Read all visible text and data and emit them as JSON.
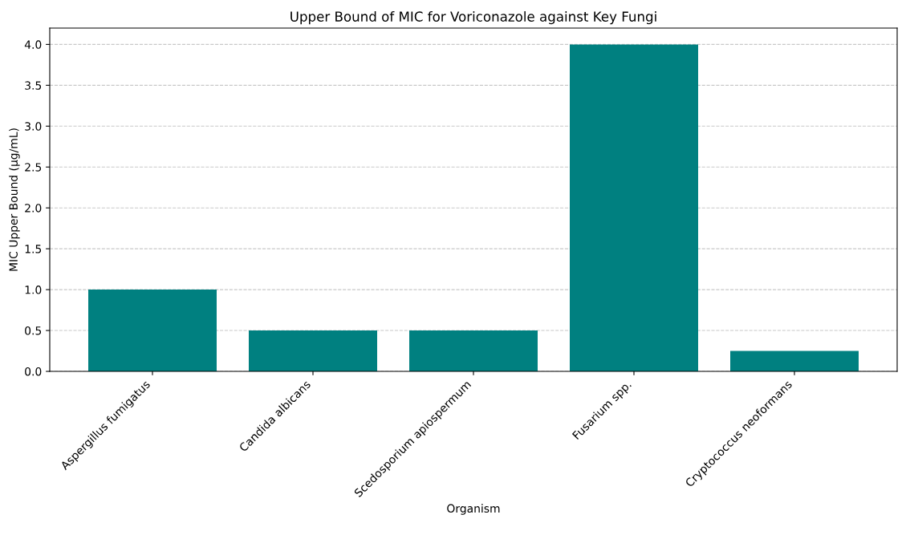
{
  "chart_data": {
    "type": "bar",
    "title": "Upper Bound of MIC for Voriconazole against Key Fungi",
    "xlabel": "Organism",
    "ylabel": "MIC Upper Bound (µg/mL)",
    "categories": [
      "Aspergillus fumigatus",
      "Candida albicans",
      "Scedosporium apiospermum",
      "Fusarium spp.",
      "Cryptococcus neoformans"
    ],
    "values": [
      1.0,
      0.5,
      0.5,
      4.0,
      0.25
    ],
    "color": "#008080",
    "ylim": [
      0,
      4.2
    ],
    "yticks": [
      {
        "value": 0,
        "label": "0.0"
      },
      {
        "value": 0.5,
        "label": "0.5"
      },
      {
        "value": 1,
        "label": "1.0"
      },
      {
        "value": 1.5,
        "label": "1.5"
      },
      {
        "value": 2,
        "label": "2.0"
      },
      {
        "value": 2.5,
        "label": "2.5"
      },
      {
        "value": 3,
        "label": "3.0"
      },
      {
        "value": 3.5,
        "label": "3.5"
      },
      {
        "value": 4,
        "label": "4.0"
      }
    ],
    "grid": "y",
    "line_style": "dashed"
  }
}
